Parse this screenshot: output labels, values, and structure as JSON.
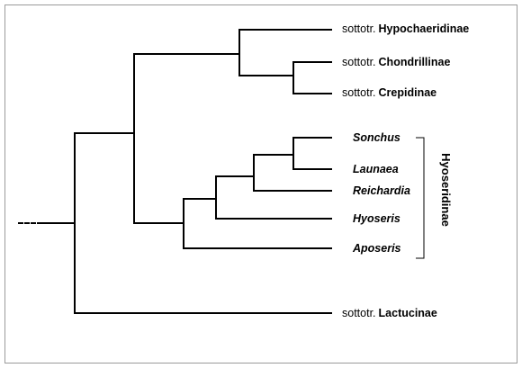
{
  "subtribes": [
    {
      "rank": "sottotr.",
      "name": "Hypochaeridinae"
    },
    {
      "rank": "sottotr.",
      "name": "Chondrillinae"
    },
    {
      "rank": "sottotr.",
      "name": "Crepidinae"
    },
    {
      "rank": "sottotr.",
      "name": "Lactucinae"
    }
  ],
  "genera": [
    "Sonchus",
    "Launaea",
    "Reichardia",
    "Hyoseris",
    "Aposeris"
  ],
  "group_label": "Hyoseridinae",
  "colors": {
    "line": "#000000",
    "border": "#9a9a9a",
    "background": "#ffffff"
  }
}
